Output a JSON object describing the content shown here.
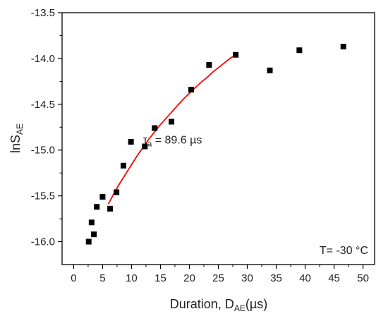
{
  "chart_data": {
    "type": "scatter",
    "xlabel": {
      "main": "Duration, D",
      "sub": "AE",
      "tail": "(µs)"
    },
    "ylabel": {
      "main": "lnS",
      "sub": "AE"
    },
    "xlim": [
      -2,
      52
    ],
    "ylim": [
      -16.25,
      -13.5
    ],
    "xticks": [
      0,
      5,
      10,
      15,
      20,
      25,
      30,
      35,
      40,
      45,
      50
    ],
    "yticks": [
      -16.0,
      -15.5,
      -15.0,
      -14.5,
      -14.0,
      -13.5
    ],
    "ytick_labels": [
      "-16.0",
      "-15.5",
      "-15.0",
      "-14.5",
      "-14.0",
      "-13.5"
    ],
    "grid": false,
    "series": [
      {
        "kind": "points",
        "marker": "square",
        "color": "#000000",
        "x": [
          2.6,
          3.1,
          3.5,
          4.0,
          5.0,
          6.3,
          7.4,
          8.6,
          9.9,
          12.3,
          14.0,
          16.9,
          20.3,
          23.4,
          28.0,
          33.9,
          39.0,
          46.6
        ],
        "y": [
          -16.0,
          -15.79,
          -15.92,
          -15.62,
          -15.51,
          -15.64,
          -15.46,
          -15.17,
          -14.91,
          -14.96,
          -14.76,
          -14.69,
          -14.34,
          -14.07,
          -13.96,
          -14.13,
          -13.91,
          -13.87
        ]
      },
      {
        "kind": "fit-curve",
        "color": "#ff0000",
        "x": [
          6.0,
          7.0,
          8.0,
          9.0,
          10.0,
          11.0,
          12.0,
          13.0,
          14.0,
          15.0,
          16.0,
          17.0,
          18.0,
          19.0,
          20.0,
          21.0,
          22.0,
          23.0,
          24.0,
          25.0,
          26.0,
          27.0,
          28.0
        ],
        "y": [
          -15.59,
          -15.47,
          -15.36,
          -15.26,
          -15.16,
          -15.06,
          -14.97,
          -14.88,
          -14.8,
          -14.72,
          -14.65,
          -14.58,
          -14.51,
          -14.44,
          -14.38,
          -14.32,
          -14.26,
          -14.21,
          -14.15,
          -14.1,
          -14.05,
          -14.0,
          -13.96
        ]
      }
    ],
    "annotations": [
      {
        "main": "τ",
        "sub": "a",
        "tail": " = 89.6 µs",
        "x": 12.0,
        "y": -14.93
      },
      {
        "text": "T= -30 °C",
        "position": "bottom-right"
      }
    ]
  }
}
